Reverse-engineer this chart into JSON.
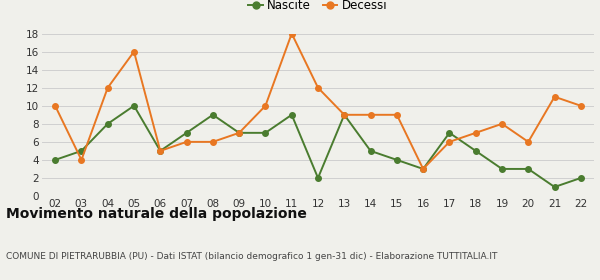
{
  "years": [
    "02",
    "03",
    "04",
    "05",
    "06",
    "07",
    "08",
    "09",
    "10",
    "11",
    "12",
    "13",
    "14",
    "15",
    "16",
    "17",
    "18",
    "19",
    "20",
    "21",
    "22"
  ],
  "nascite": [
    4,
    5,
    8,
    10,
    5,
    7,
    9,
    7,
    7,
    9,
    2,
    9,
    5,
    4,
    3,
    7,
    5,
    3,
    3,
    1,
    2
  ],
  "decessi": [
    10,
    4,
    12,
    16,
    5,
    6,
    6,
    7,
    10,
    18,
    12,
    9,
    9,
    9,
    3,
    6,
    7,
    8,
    6,
    11,
    10
  ],
  "nascite_color": "#4a7c2f",
  "decessi_color": "#e87722",
  "background_color": "#f0f0eb",
  "grid_color": "#d0d0d0",
  "ylim": [
    0,
    18
  ],
  "yticks": [
    0,
    2,
    4,
    6,
    8,
    10,
    12,
    14,
    16,
    18
  ],
  "title": "Movimento naturale della popolazione",
  "subtitle": "COMUNE DI PIETRARUBBIA (PU) - Dati ISTAT (bilancio demografico 1 gen-31 dic) - Elaborazione TUTTITALIA.IT",
  "legend_nascite": "Nascite",
  "legend_decessi": "Decessi",
  "title_fontsize": 10,
  "subtitle_fontsize": 6.5,
  "tick_fontsize": 7.5,
  "legend_fontsize": 8.5,
  "marker_size": 4,
  "line_width": 1.4
}
